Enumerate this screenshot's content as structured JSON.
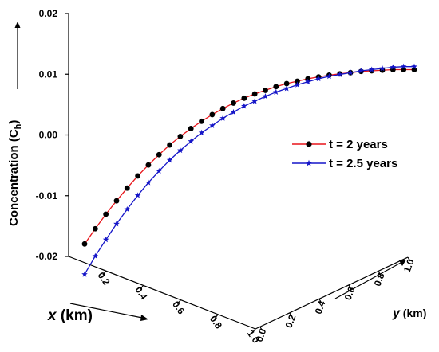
{
  "chart_data": {
    "type": "line",
    "title": "",
    "zlabel": "Concentration (C",
    "zlabel_sub": "h",
    "zlabel_close": ")",
    "xlabel": "x",
    "xlabel_unit": " (km)",
    "ylabel": "y",
    "ylabel_unit": " (km)",
    "z_ticks": [
      "0.02",
      "0.01",
      "0.00",
      "-0.01",
      "-0.02"
    ],
    "x_ticks": [
      "0.2",
      "0.4",
      "0.6",
      "0.8",
      "1.0"
    ],
    "y_ticks": [
      "0.0",
      "0.2",
      "0.4",
      "0.6",
      "0.8",
      "1.0"
    ],
    "zlim": [
      -0.02,
      0.02
    ],
    "legend_position": "right",
    "x": [
      0.0,
      0.0323,
      0.0645,
      0.0968,
      0.129,
      0.1613,
      0.1935,
      0.2258,
      0.2581,
      0.2903,
      0.3226,
      0.3548,
      0.3871,
      0.4194,
      0.4516,
      0.4839,
      0.5161,
      0.5484,
      0.5806,
      0.6129,
      0.6452,
      0.6774,
      0.7097,
      0.7419,
      0.7742,
      0.8065,
      0.8387,
      0.871,
      0.9032,
      0.9355,
      0.9677,
      1.0
    ],
    "series": [
      {
        "name": "t = 2 years",
        "color": "#e8141a",
        "marker": "circle",
        "marker_color": "#000000",
        "values": [
          -0.0186,
          -0.0161,
          -0.0137,
          -0.0115,
          -0.0094,
          -0.0074,
          -0.0056,
          -0.0039,
          -0.0023,
          -0.0009,
          0.0004,
          0.0016,
          0.0027,
          0.0037,
          0.0046,
          0.0054,
          0.0061,
          0.0067,
          0.0073,
          0.0078,
          0.0082,
          0.0086,
          0.0089,
          0.0092,
          0.0094,
          0.0096,
          0.0098,
          0.0099,
          0.01,
          0.0101,
          0.0101,
          0.0101
        ]
      },
      {
        "name": "t = 2.5 years",
        "color": "#1515c8",
        "marker": "star",
        "marker_color": "#1515c8",
        "values": [
          -0.0236,
          -0.0206,
          -0.0179,
          -0.0153,
          -0.0129,
          -0.0106,
          -0.0085,
          -0.0066,
          -0.0048,
          -0.0032,
          -0.0017,
          -0.0003,
          0.0009,
          0.0021,
          0.0031,
          0.0041,
          0.0049,
          0.0057,
          0.0064,
          0.007,
          0.0076,
          0.0081,
          0.0086,
          0.009,
          0.0093,
          0.0096,
          0.0099,
          0.0101,
          0.0103,
          0.0105,
          0.0106,
          0.0106
        ]
      }
    ]
  }
}
